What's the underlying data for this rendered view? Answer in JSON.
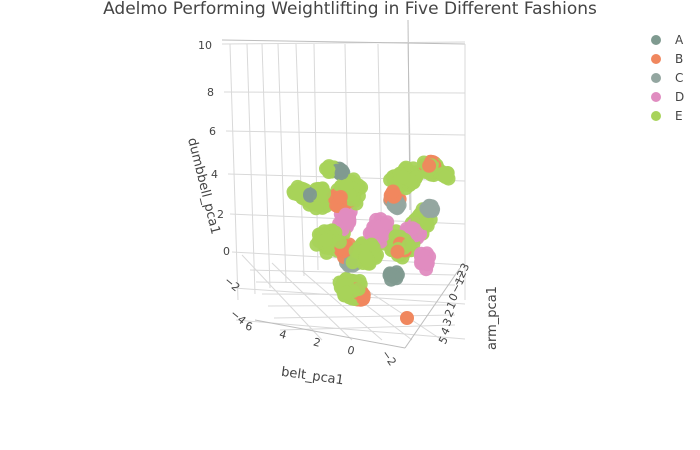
{
  "chart_data": {
    "type": "scatter",
    "dimension": "3d",
    "title": "Adelmo Performing Weightlifting in Five Different Fashions",
    "axes": {
      "z": {
        "title": "dumbbell_pca1",
        "ticks": [
          "10",
          "8",
          "6",
          "4",
          "2",
          "0",
          "−2",
          "−4"
        ],
        "range": [
          -4,
          10
        ]
      },
      "x": {
        "title": "belt_pca1",
        "ticks": [
          "6",
          "4",
          "2",
          "0",
          "−2"
        ],
        "range": [
          -3,
          6
        ]
      },
      "y": {
        "title": "arm_pca1",
        "ticks": [
          "−3",
          "−2",
          "−1",
          "0",
          "1",
          "2",
          "3",
          "4",
          "5"
        ],
        "range": [
          -3,
          5
        ]
      }
    },
    "legend": {
      "placement": "top-right"
    },
    "series": [
      {
        "name": "A",
        "color": "#7f9a90"
      },
      {
        "name": "B",
        "color": "#f0875e"
      },
      {
        "name": "C",
        "color": "#93a6a0"
      },
      {
        "name": "D",
        "color": "#e08cc0"
      },
      {
        "name": "E",
        "color": "#a8d35a"
      }
    ]
  }
}
